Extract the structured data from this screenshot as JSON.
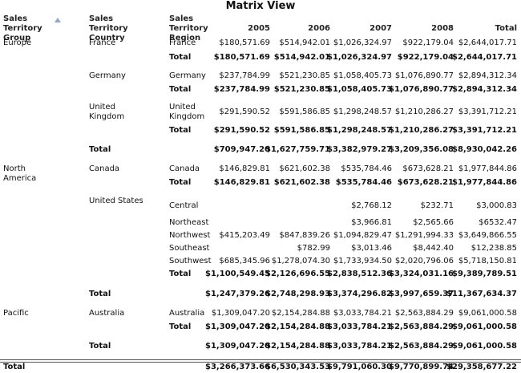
{
  "header": {
    "title": "Matrix View"
  },
  "table": {
    "columns": [
      "Sales Territory Group",
      "Sales Territory Country",
      "Sales Territory Region",
      "2005",
      "2006",
      "2007",
      "2008",
      "Total"
    ],
    "rows": [
      [
        "Europe",
        "France",
        "France",
        "$180,571.69",
        "$514,942.01",
        "$1,026,324.97",
        "$922,179.04",
        "$2,644,017.71"
      ],
      [
        null,
        null,
        "Total",
        "$180,571.69",
        "$514,942.01",
        "$1,026,324.97",
        "$922,179.04",
        "$2,644,017.71"
      ],
      [
        null,
        "Germany",
        "Germany",
        "$237,784.99",
        "$521,230.85",
        "$1,058,405.73",
        "$1,076,890.77",
        "$2,894,312.34"
      ],
      [
        null,
        null,
        "Total",
        "$237,784.99",
        "$521,230.85",
        "$1,058,405.73",
        "$1,076,890.77",
        "$2,894,312.34"
      ],
      [
        null,
        "United Kingdom",
        "United Kingdom",
        "$291,590.52",
        "$591,586.85",
        "$1,298,248.57",
        "$1,210,286.27",
        "$3,391,712.21"
      ],
      [
        null,
        null,
        "Total",
        "$291,590.52",
        "$591,586.85",
        "$1,298,248.57",
        "$1,210,286.27",
        "$3,391,712.21"
      ],
      [
        null,
        "Total",
        null,
        "$709,947.20",
        "$1,627,759.71",
        "$3,382,979.27",
        "$3,209,356.08",
        "$8,930,042.26"
      ],
      [
        "North America",
        "Canada",
        "Canada",
        "$146,829.81",
        "$621,602.38",
        "$535,784.46",
        "$673,628.21",
        "$1,977,844.86"
      ],
      [
        null,
        null,
        "Total",
        "$146,829.81",
        "$621,602.38",
        "$535,784.46",
        "$673,628.21",
        "$1,977,844.86"
      ],
      [
        null,
        "United States",
        "Central",
        null,
        null,
        "$2,768.12",
        "$232.71",
        "$3,000.83"
      ],
      [
        null,
        null,
        "Northeast",
        null,
        null,
        "$3,966.81",
        "$2,565.66",
        "$6532.47"
      ],
      [
        null,
        null,
        "Northwest",
        "$415,203.49",
        "$847,839.26",
        "$1,094,829.47",
        "$1,291,994.33",
        "$3,649,866.55"
      ],
      [
        null,
        null,
        "Southeast",
        null,
        "$782.99",
        "$3,013.46",
        "$8,442.40",
        "$12,238.85"
      ],
      [
        null,
        null,
        "Southwest",
        "$685,345.96",
        "$1,278,074.30",
        "$1,733,934.50",
        "$2,020,796.06",
        "$5,718,150.81"
      ],
      [
        null,
        null,
        "Total",
        "$1,100,549.45",
        "$2,126,696.55",
        "$2,838,512.36",
        "$3,324,031.16",
        "$9,389,789.51"
      ],
      [
        null,
        "Total",
        null,
        "$1,247,379.26",
        "$2,748,298.93",
        "$3,374,296.82",
        "$3,997,659.37",
        "$11,367,634.37"
      ],
      [
        "Pacific",
        "Australia",
        "Australia",
        "$1,309,047.20",
        "$2,154,284.88",
        "$3,033,784.21",
        "$2,563,884.29",
        "$9,061,000.58"
      ],
      [
        null,
        null,
        "Total",
        "$1,309,047.20",
        "$2,154,284.88",
        "$3,033,784.21",
        "$2,563,884.29",
        "$9,061,000.58"
      ],
      [
        null,
        "Total",
        null,
        "$1,309,047.20",
        "$2,154,284.88",
        "$3,033,784.21",
        "$2,563,884.29",
        "$9,061,000.58"
      ],
      [
        "Total",
        null,
        null,
        "$3,266,373.66",
        "$6,530,343.53",
        "$9,791,060.30",
        "$9,770,899.74",
        "$29,358,677.22"
      ]
    ]
  }
}
